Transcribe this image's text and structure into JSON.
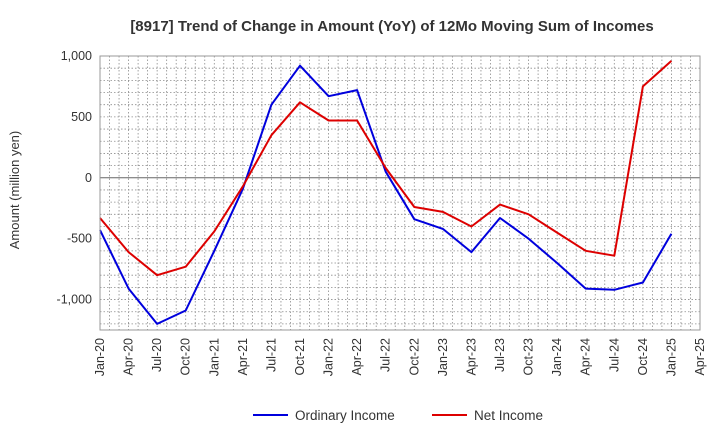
{
  "chart_data": {
    "type": "line",
    "title": "[8917]  Trend of Change in Amount (YoY) of 12Mo Moving Sum of Incomes",
    "xlabel": "",
    "ylabel": "Amount (million yen)",
    "ylim": [
      -1250,
      1000
    ],
    "yticks": [
      -1000,
      -500,
      0,
      500,
      1000
    ],
    "ytick_labels": [
      "-1,000",
      "-500",
      "0",
      "500",
      "1,000"
    ],
    "x_tick_labels": [
      "Jan-20",
      "Apr-20",
      "Jul-20",
      "Oct-20",
      "Jan-21",
      "Apr-21",
      "Jul-21",
      "Oct-21",
      "Jan-22",
      "Apr-22",
      "Jul-22",
      "Oct-22",
      "Jan-23",
      "Apr-23",
      "Jul-23",
      "Oct-23",
      "Jan-24",
      "Apr-24",
      "Jul-24",
      "Oct-24",
      "Jan-25",
      "Apr-25"
    ],
    "grid": true,
    "legend_position": "bottom",
    "series": [
      {
        "name": "Ordinary Income",
        "color": "#0000dd",
        "values": [
          -430,
          -910,
          -1200,
          -1090,
          -600,
          -90,
          600,
          920,
          670,
          720,
          50,
          -340,
          -420,
          -610,
          -330,
          -500,
          -700,
          -910,
          -920,
          -860,
          -460
        ]
      },
      {
        "name": "Net Income",
        "color": "#dd0000",
        "values": [
          -330,
          -610,
          -800,
          -730,
          -440,
          -70,
          350,
          620,
          470,
          470,
          80,
          -240,
          -280,
          -400,
          -220,
          -300,
          -450,
          -600,
          -640,
          750,
          960
        ]
      }
    ]
  }
}
